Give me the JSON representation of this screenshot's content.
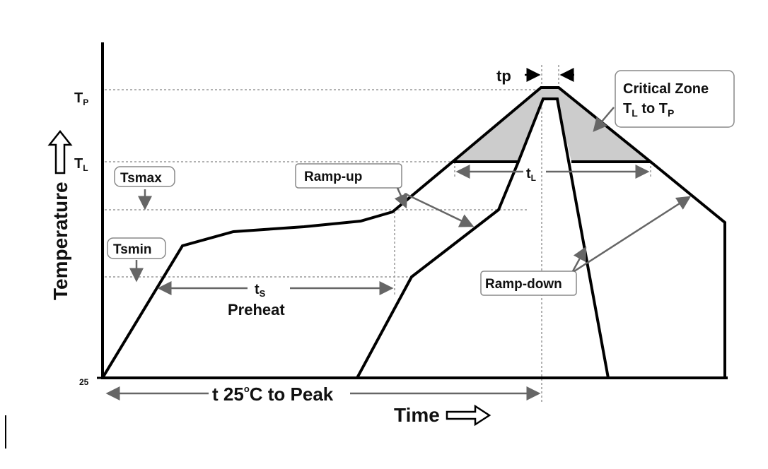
{
  "axes": {
    "y_label": "Temperature",
    "x_label": "Time",
    "y_origin": "25",
    "tp_level": "T",
    "tp_sub": "P",
    "tl_level": "T",
    "tl_sub": "L"
  },
  "labels": {
    "tsmax": "Tsmax",
    "tsmin": "Tsmin",
    "ramp_up": "Ramp-up",
    "ramp_down": "Ramp-down",
    "critical_line1": "Critical Zone",
    "critical_t1": "T",
    "critical_s1": "L",
    "critical_to": " to T",
    "critical_s2": "P",
    "tp": "tp",
    "tl": "t",
    "tl_sub": "L",
    "ts": "t",
    "ts_sub": "S",
    "preheat": "Preheat",
    "t25_prefix": "t 25",
    "t25_deg": "o",
    "t25_suffix": "C to Peak"
  },
  "colors": {
    "curve": "#000000",
    "zone": "#cccccc",
    "annotation": "#666666"
  }
}
